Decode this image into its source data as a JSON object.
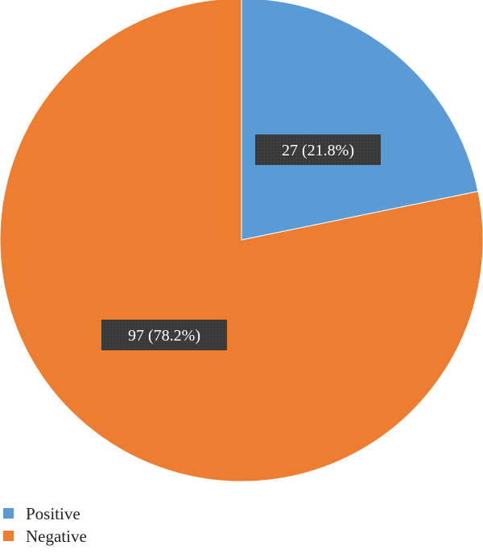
{
  "chart_data": {
    "type": "pie",
    "title": "",
    "categories": [
      "Positive",
      "Negative"
    ],
    "values": [
      27,
      97
    ],
    "percentages": [
      "21.8%",
      "78.2%"
    ],
    "data_labels": [
      "27 (21.8%)",
      "97 (78.2%)"
    ],
    "colors": [
      "#5b9bd5",
      "#ed7d31"
    ],
    "start_angle_deg": 90,
    "direction": "clockwise",
    "legend": {
      "position": "bottom-left",
      "entries": [
        "Positive",
        "Negative"
      ]
    }
  }
}
